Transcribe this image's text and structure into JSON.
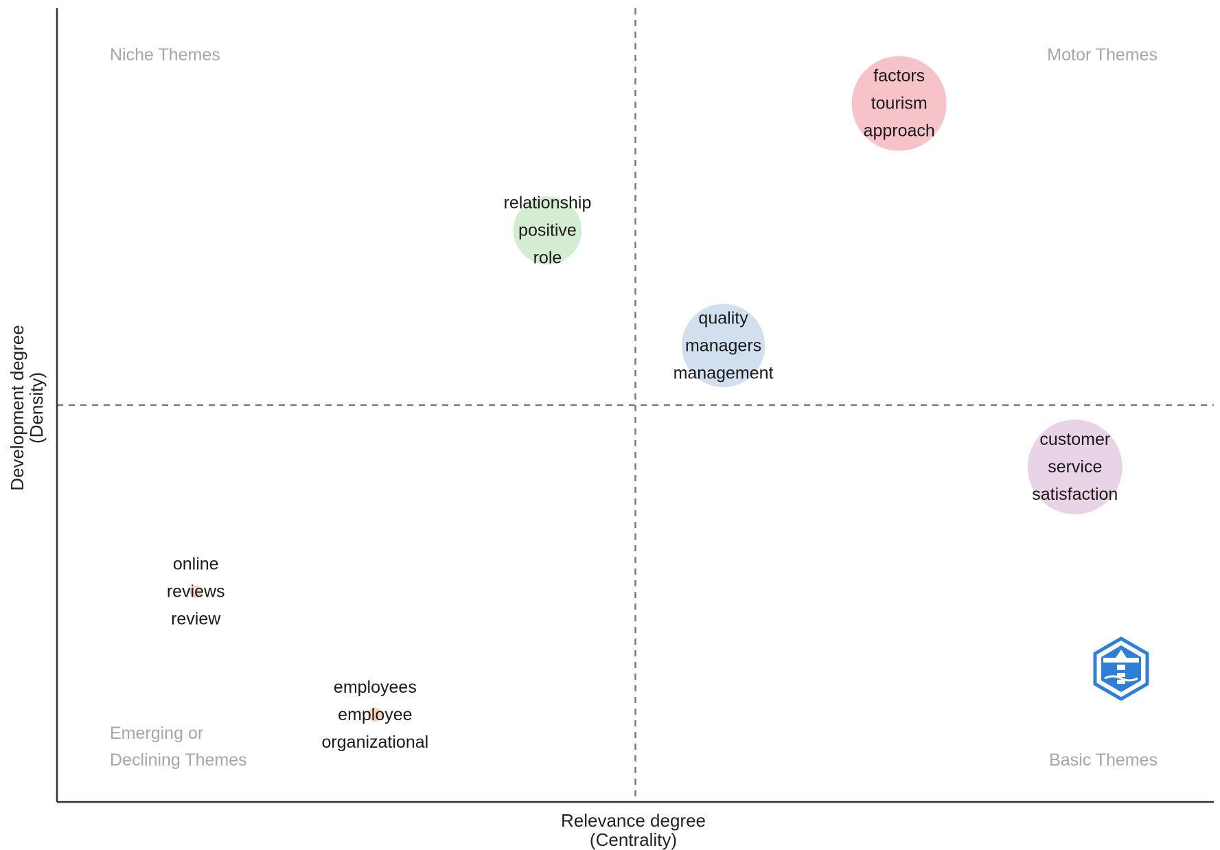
{
  "chart_data": {
    "type": "scatter",
    "title": "",
    "xlabel": [
      "Relevance degree",
      "(Centrality)"
    ],
    "ylabel": [
      "Development degree",
      "(Density)"
    ],
    "xlim": [
      0,
      1
    ],
    "ylim": [
      0,
      1
    ],
    "x_divider": 0.5,
    "y_divider": 0.5,
    "grid": false,
    "quadrants": [
      {
        "name": "niche",
        "lines": [
          "Niche Themes"
        ],
        "position": "top-left"
      },
      {
        "name": "motor",
        "lines": [
          "Motor Themes"
        ],
        "position": "top-right"
      },
      {
        "name": "emerging",
        "lines": [
          "Emerging or",
          "Declining Themes"
        ],
        "position": "bottom-left"
      },
      {
        "name": "basic",
        "lines": [
          "Basic Themes"
        ],
        "position": "bottom-right"
      }
    ],
    "clusters": [
      {
        "words": [
          "factors",
          "tourism",
          "approach"
        ],
        "x": 0.728,
        "y": 0.88,
        "size": 1.0,
        "color": "#f3b9be"
      },
      {
        "words": [
          "relationship",
          "positive",
          "role"
        ],
        "x": 0.424,
        "y": 0.72,
        "size": 0.72,
        "color": "#cde9c9"
      },
      {
        "words": [
          "quality",
          "managers",
          "management"
        ],
        "x": 0.576,
        "y": 0.575,
        "size": 0.88,
        "color": "#c9d9ec"
      },
      {
        "words": [
          "customer",
          "service",
          "satisfaction"
        ],
        "x": 0.88,
        "y": 0.422,
        "size": 1.0,
        "color": "#e5cce3"
      },
      {
        "words": [
          "online",
          "reviews",
          "review"
        ],
        "x": 0.12,
        "y": 0.265,
        "size": 0.13,
        "color": "#f2c8c0"
      },
      {
        "words": [
          "employees",
          "employee",
          "organizational"
        ],
        "x": 0.275,
        "y": 0.11,
        "size": 0.15,
        "color": "#f3cfb0"
      }
    ]
  },
  "colors": {
    "axis": "#333333",
    "divider": "#7a7a7a",
    "quadrant_text": "#a6a6a6"
  },
  "logo": {
    "icon": "hexagon-lighthouse-logo",
    "color": "#2f7fd6"
  }
}
